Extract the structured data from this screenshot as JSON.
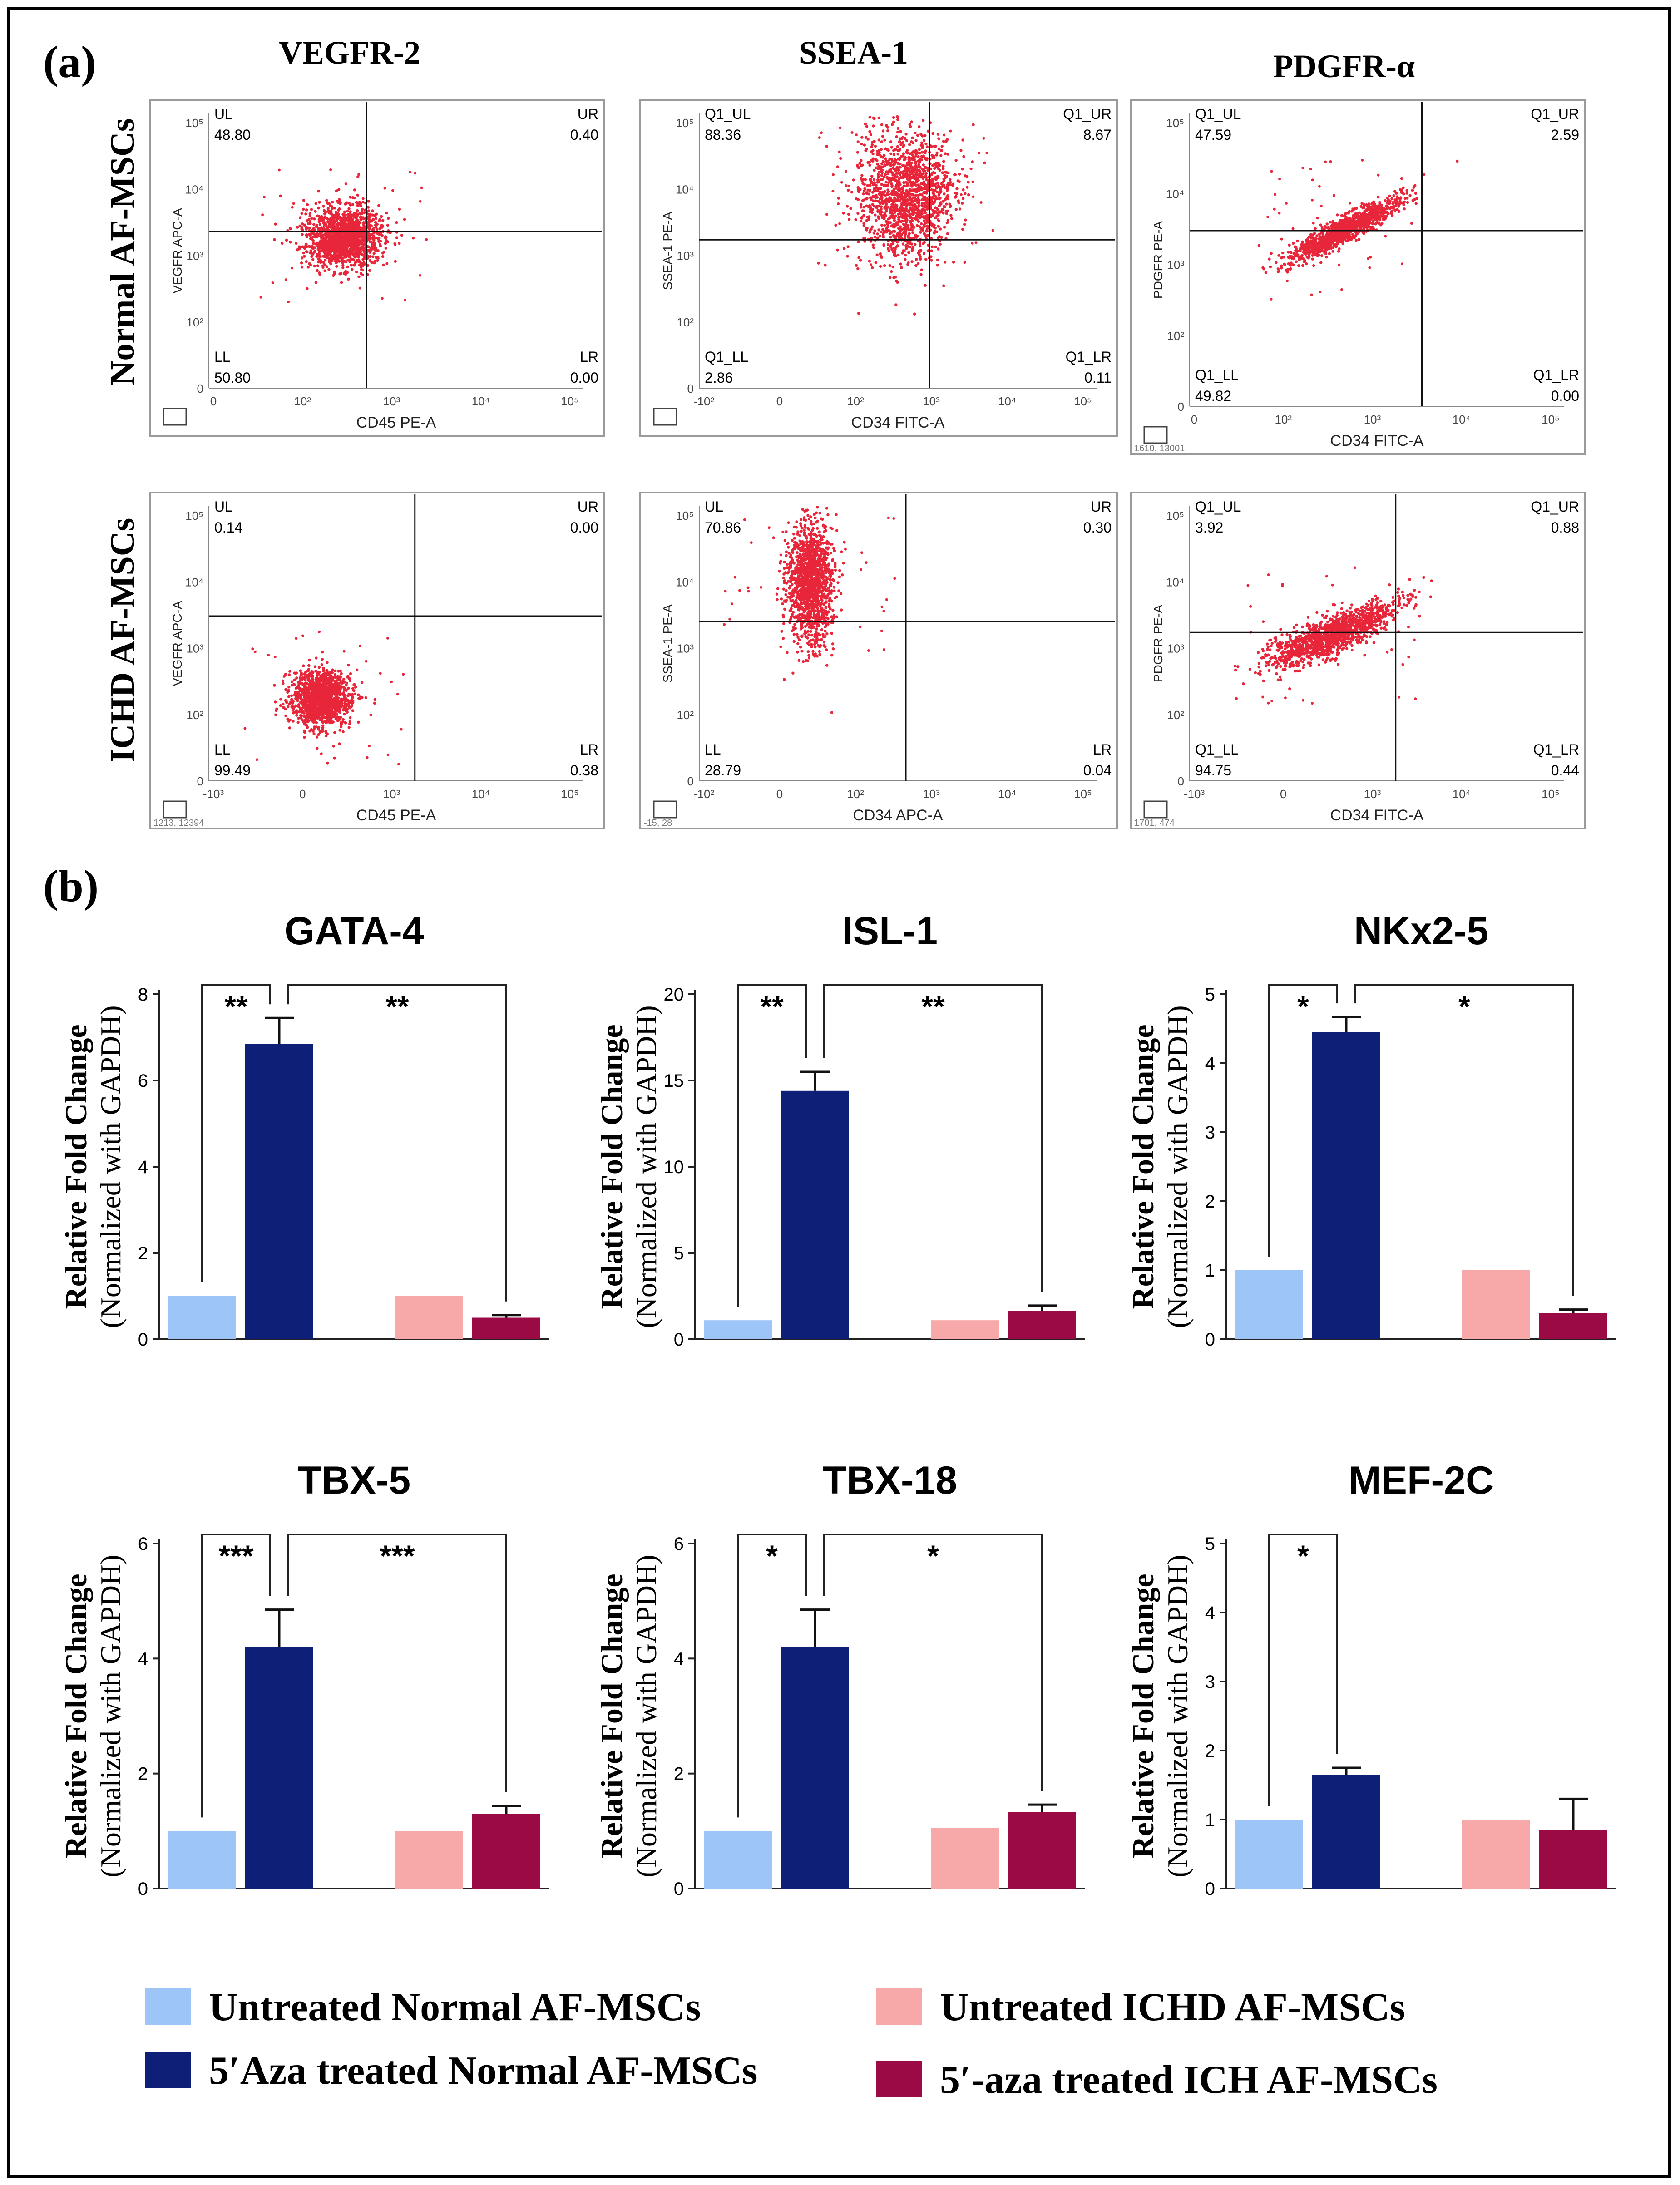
{
  "panel_labels": {
    "a": "(a)",
    "b": "(b)"
  },
  "flow_row_labels": [
    "Normal  AF-MSCs",
    "ICHD AF-MSCs"
  ],
  "flow_column_titles": [
    "VEGFR-2",
    "SSEA-1",
    "PDGFR-α"
  ],
  "flow_plots": [
    {
      "y_label": "VEGFR APC-A",
      "x_label": "CD45 PE-A",
      "x_ticks": [
        "0",
        "10²",
        "10³",
        "10⁴",
        "10⁵"
      ],
      "y_ticks": [
        "10⁵",
        "10⁴",
        "10³",
        "10²",
        "0"
      ],
      "quadrants": {
        "ul": [
          "UL",
          "48.80"
        ],
        "ur": [
          "UR",
          "0.40"
        ],
        "ll": [
          "LL",
          "50.80"
        ],
        "lr": [
          "LR",
          "0.00"
        ]
      },
      "footer": ""
    },
    {
      "y_label": "SSEA-1 PE-A",
      "x_label": "CD34 FITC-A",
      "x_ticks": [
        "-10²",
        "0",
        "10²",
        "10³",
        "10⁴",
        "10⁵"
      ],
      "y_ticks": [
        "10⁵",
        "10⁴",
        "10³",
        "10²",
        "0"
      ],
      "quadrants": {
        "ul": [
          "Q1_UL",
          "88.36"
        ],
        "ur": [
          "Q1_UR",
          "8.67"
        ],
        "ll": [
          "Q1_LL",
          "2.86"
        ],
        "lr": [
          "Q1_LR",
          "0.11"
        ]
      },
      "footer": ""
    },
    {
      "y_label": "PDGFR PE-A",
      "x_label": "CD34 FITC-A",
      "x_ticks": [
        "0",
        "10²",
        "10³",
        "10⁴",
        "10⁵"
      ],
      "y_ticks": [
        "10⁵",
        "10⁴",
        "10³",
        "10²",
        "0"
      ],
      "quadrants": {
        "ul": [
          "Q1_UL",
          "47.59"
        ],
        "ur": [
          "Q1_UR",
          "2.59"
        ],
        "ll": [
          "Q1_LL",
          "49.82"
        ],
        "lr": [
          "Q1_LR",
          "0.00"
        ]
      },
      "footer": "1610, 13001"
    },
    {
      "y_label": "VEGFR APC-A",
      "x_label": "CD45 PE-A",
      "x_ticks": [
        "-10³",
        "0",
        "10³",
        "10⁴",
        "10⁵"
      ],
      "y_ticks": [
        "10⁵",
        "10⁴",
        "10³",
        "10²",
        "0"
      ],
      "quadrants": {
        "ul": [
          "UL",
          "0.14"
        ],
        "ur": [
          "UR",
          "0.00"
        ],
        "ll": [
          "LL",
          "99.49"
        ],
        "lr": [
          "LR",
          "0.38"
        ]
      },
      "footer": "1213, 12394"
    },
    {
      "y_label": "SSEA-1 PE-A",
      "x_label": "CD34 APC-A",
      "x_ticks": [
        "-10²",
        "0",
        "10²",
        "10³",
        "10⁴",
        "10⁵"
      ],
      "y_ticks": [
        "10⁵",
        "10⁴",
        "10³",
        "10²",
        "0"
      ],
      "quadrants": {
        "ul": [
          "UL",
          "70.86"
        ],
        "ur": [
          "UR",
          "0.30"
        ],
        "ll": [
          "LL",
          "28.79"
        ],
        "lr": [
          "LR",
          "0.04"
        ]
      },
      "footer": "-15, 28"
    },
    {
      "y_label": "PDGFR PE-A",
      "x_label": "CD34 FITC-A",
      "x_ticks": [
        "-10³",
        "0",
        "10³",
        "10⁴",
        "10⁵"
      ],
      "y_ticks": [
        "10⁵",
        "10⁴",
        "10³",
        "10²",
        "0"
      ],
      "quadrants": {
        "ul": [
          "Q1_UL",
          "3.92"
        ],
        "ur": [
          "Q1_UR",
          "0.88"
        ],
        "ll": [
          "Q1_LL",
          "94.75"
        ],
        "lr": [
          "Q1_LR",
          "0.44"
        ]
      },
      "footer": "1701, 474"
    }
  ],
  "y_label_line1": "Relative Fold Change",
  "y_label_line2": "(Normalized with GAPDH)",
  "legend": [
    {
      "label": "Untreated Normal AF-MSCs",
      "color": "#9ec5f8"
    },
    {
      "label": "5′Aza treated Normal AF-MSCs",
      "color": "#0e1f78"
    },
    {
      "label": "Untreated ICHD AF-MSCs",
      "color": "#f7a8a8"
    },
    {
      "label": "5′-aza treated ICH AF-MSCs",
      "color": "#9c0a45"
    }
  ],
  "colors": {
    "flow_dots": "#e8263a",
    "bars": [
      "#9ec5f8",
      "#0e1f78",
      "#f7a8a8",
      "#9c0a45"
    ]
  },
  "chart_data": [
    {
      "type": "bar",
      "title": "GATA-4",
      "ylim": [
        0,
        8
      ],
      "yticks": [
        "0",
        "2",
        "4",
        "6",
        "8"
      ],
      "values": [
        1.0,
        6.85,
        1.0,
        0.5
      ],
      "errors": [
        0,
        0.6,
        0,
        0.06
      ],
      "significance": [
        {
          "between": [
            0,
            1
          ],
          "label": "**"
        },
        {
          "between": [
            1,
            3
          ],
          "label": "**"
        }
      ]
    },
    {
      "type": "bar",
      "title": "ISL-1",
      "ylim": [
        0,
        20
      ],
      "yticks": [
        "0",
        "5",
        "10",
        "15",
        "20"
      ],
      "values": [
        1.1,
        14.4,
        1.1,
        1.65
      ],
      "errors": [
        0,
        1.1,
        0,
        0.3
      ],
      "significance": [
        {
          "between": [
            0,
            1
          ],
          "label": "**"
        },
        {
          "between": [
            1,
            3
          ],
          "label": "**"
        }
      ]
    },
    {
      "type": "bar",
      "title": "NKx2-5",
      "ylim": [
        0,
        5
      ],
      "yticks": [
        "0",
        "1",
        "2",
        "3",
        "4",
        "5"
      ],
      "values": [
        1.0,
        4.45,
        1.0,
        0.38
      ],
      "errors": [
        0,
        0.22,
        0,
        0.05
      ],
      "significance": [
        {
          "between": [
            0,
            1
          ],
          "label": "*"
        },
        {
          "between": [
            1,
            3
          ],
          "label": "*"
        }
      ]
    },
    {
      "type": "bar",
      "title": "TBX-5",
      "ylim": [
        0,
        6
      ],
      "yticks": [
        "0",
        "2",
        "4",
        "6"
      ],
      "values": [
        1.0,
        4.2,
        1.0,
        1.3
      ],
      "errors": [
        0,
        0.65,
        0,
        0.14
      ],
      "significance": [
        {
          "between": [
            0,
            1
          ],
          "label": "***"
        },
        {
          "between": [
            1,
            3
          ],
          "label": "***"
        }
      ]
    },
    {
      "type": "bar",
      "title": "TBX-18",
      "ylim": [
        0,
        6
      ],
      "yticks": [
        "0",
        "2",
        "4",
        "6"
      ],
      "values": [
        1.0,
        4.2,
        1.05,
        1.33
      ],
      "errors": [
        0,
        0.65,
        0,
        0.13
      ],
      "significance": [
        {
          "between": [
            0,
            1
          ],
          "label": "*"
        },
        {
          "between": [
            1,
            3
          ],
          "label": "*"
        }
      ]
    },
    {
      "type": "bar",
      "title": "MEF-2C",
      "ylim": [
        0,
        5
      ],
      "yticks": [
        "0",
        "1",
        "2",
        "3",
        "4",
        "5"
      ],
      "values": [
        1.0,
        1.65,
        1.0,
        0.85
      ],
      "errors": [
        0,
        0.1,
        0,
        0.45
      ],
      "significance": [
        {
          "between": [
            0,
            1
          ],
          "label": "*"
        }
      ]
    }
  ]
}
